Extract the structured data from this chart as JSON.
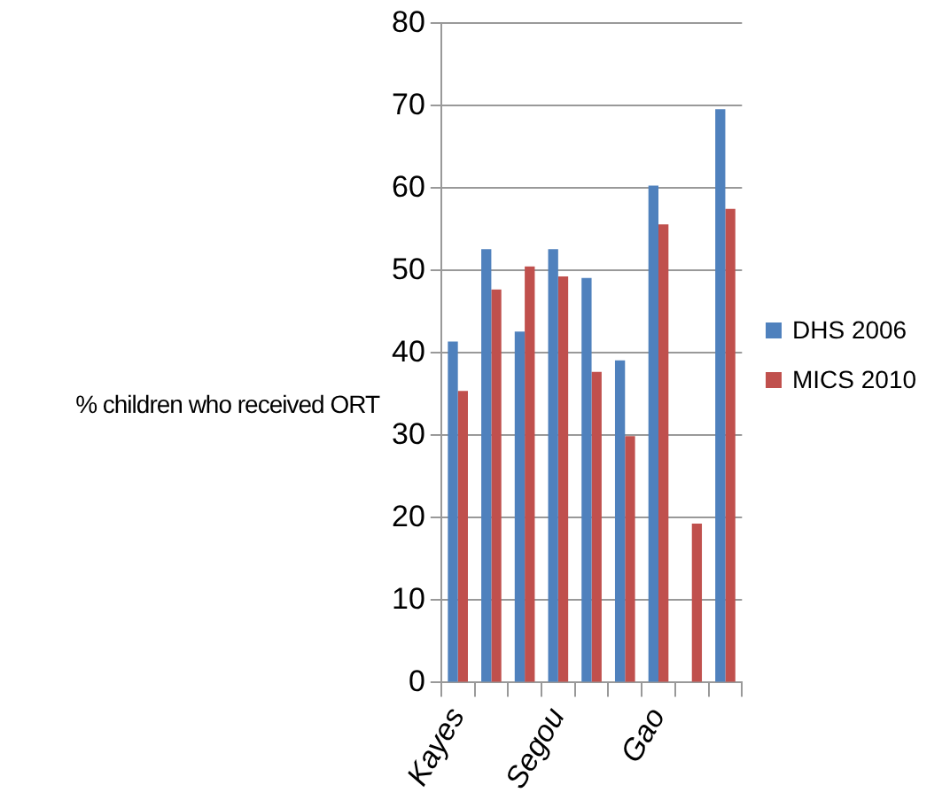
{
  "chart_data": {
    "type": "bar",
    "ylabel": "% children who received ORT",
    "categories": [
      "Kayes",
      null,
      null,
      "Segou",
      null,
      null,
      "Gao",
      null,
      null
    ],
    "series": [
      {
        "name": "DHS 2006",
        "color": "#4f81bd",
        "values": [
          41.4,
          52.6,
          42.6,
          52.6,
          49.1,
          39.1,
          60.3,
          null,
          69.6
        ]
      },
      {
        "name": "MICS 2010",
        "color": "#c0504d",
        "values": [
          35.4,
          47.7,
          50.5,
          49.3,
          37.7,
          29.9,
          55.6,
          19.3,
          57.5
        ]
      }
    ],
    "ylim": [
      0,
      80
    ],
    "yticks": [
      0,
      10,
      20,
      30,
      40,
      50,
      60,
      70,
      80
    ],
    "grid": "y",
    "legend": "right"
  }
}
